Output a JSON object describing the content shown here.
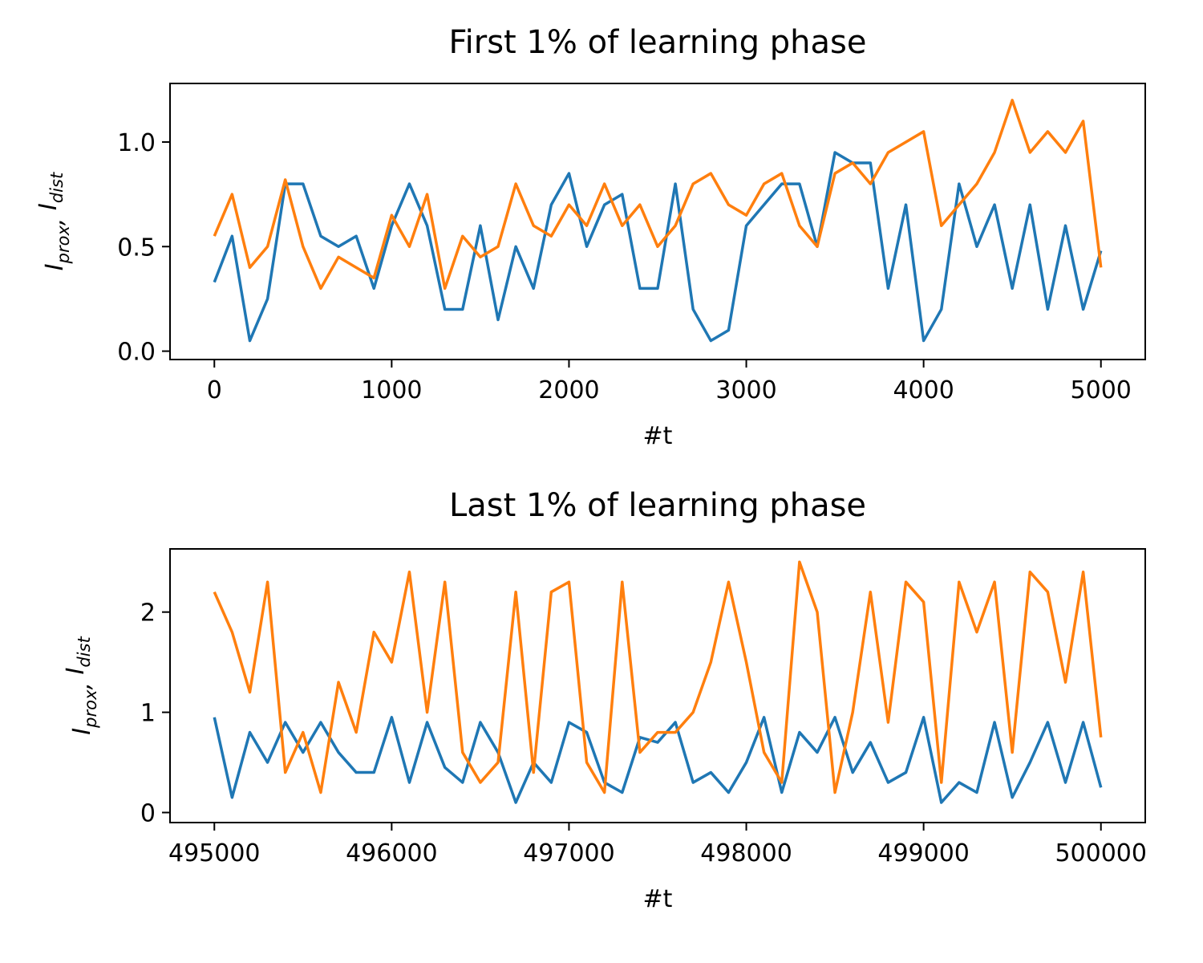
{
  "chart_data": [
    {
      "type": "line",
      "title": "First 1% of learning phase",
      "xlabel": "#t",
      "ylabel": [
        "I",
        "prox",
        ", ",
        "I",
        "dist"
      ],
      "x": [
        0,
        100,
        200,
        300,
        400,
        500,
        600,
        700,
        800,
        900,
        1000,
        1100,
        1200,
        1300,
        1400,
        1500,
        1600,
        1700,
        1800,
        1900,
        2000,
        2100,
        2200,
        2300,
        2400,
        2500,
        2600,
        2700,
        2800,
        2900,
        3000,
        3100,
        3200,
        3300,
        3400,
        3500,
        3600,
        3700,
        3800,
        3900,
        4000,
        4100,
        4200,
        4300,
        4400,
        4500,
        4600,
        4700,
        4800,
        4900,
        5000
      ],
      "series": [
        {
          "color": "#1f77b4",
          "values": [
            0.33,
            0.55,
            0.05,
            0.25,
            0.8,
            0.8,
            0.55,
            0.5,
            0.55,
            0.3,
            0.6,
            0.8,
            0.6,
            0.2,
            0.2,
            0.6,
            0.15,
            0.5,
            0.3,
            0.7,
            0.85,
            0.5,
            0.7,
            0.75,
            0.3,
            0.3,
            0.8,
            0.2,
            0.05,
            0.1,
            0.6,
            0.7,
            0.8,
            0.8,
            0.5,
            0.95,
            0.9,
            0.9,
            0.3,
            0.7,
            0.05,
            0.2,
            0.8,
            0.5,
            0.7,
            0.3,
            0.7,
            0.2,
            0.6,
            0.2,
            0.48
          ]
        },
        {
          "color": "#ff7f0e",
          "values": [
            0.55,
            0.75,
            0.4,
            0.5,
            0.82,
            0.5,
            0.3,
            0.45,
            0.4,
            0.35,
            0.65,
            0.5,
            0.75,
            0.3,
            0.55,
            0.45,
            0.5,
            0.8,
            0.6,
            0.55,
            0.7,
            0.6,
            0.8,
            0.6,
            0.7,
            0.5,
            0.6,
            0.8,
            0.85,
            0.7,
            0.65,
            0.8,
            0.85,
            0.6,
            0.5,
            0.85,
            0.9,
            0.8,
            0.95,
            1.0,
            1.05,
            0.6,
            0.7,
            0.8,
            0.95,
            1.2,
            0.95,
            1.05,
            0.95,
            1.1,
            0.4
          ]
        }
      ],
      "xlim": [
        -250,
        5250
      ],
      "xticks": [
        0,
        1000,
        2000,
        3000,
        4000,
        5000
      ],
      "ylim": [
        -0.04,
        1.28
      ],
      "yticks": [
        {
          "value": 0,
          "label": "0.0"
        },
        0.5,
        {
          "value": 1,
          "label": "1.0"
        }
      ]
    },
    {
      "type": "line",
      "title": "Last 1% of learning phase",
      "xlabel": "#t",
      "ylabel": [
        "I",
        "prox",
        ", ",
        "I",
        "dist"
      ],
      "x": [
        495000,
        495100,
        495200,
        495300,
        495400,
        495500,
        495600,
        495700,
        495800,
        495900,
        496000,
        496100,
        496200,
        496300,
        496400,
        496500,
        496600,
        496700,
        496800,
        496900,
        497000,
        497100,
        497200,
        497300,
        497400,
        497500,
        497600,
        497700,
        497800,
        497900,
        498000,
        498100,
        498200,
        498300,
        498400,
        498500,
        498600,
        498700,
        498800,
        498900,
        499000,
        499100,
        499200,
        499300,
        499400,
        499500,
        499600,
        499700,
        499800,
        499900,
        500000
      ],
      "series": [
        {
          "color": "#1f77b4",
          "values": [
            0.95,
            0.15,
            0.8,
            0.5,
            0.9,
            0.6,
            0.9,
            0.6,
            0.4,
            0.4,
            0.95,
            0.3,
            0.9,
            0.45,
            0.3,
            0.9,
            0.6,
            0.1,
            0.5,
            0.3,
            0.9,
            0.8,
            0.3,
            0.2,
            0.75,
            0.7,
            0.9,
            0.3,
            0.4,
            0.2,
            0.5,
            0.95,
            0.2,
            0.8,
            0.6,
            0.95,
            0.4,
            0.7,
            0.3,
            0.4,
            0.95,
            0.1,
            0.3,
            0.2,
            0.9,
            0.15,
            0.5,
            0.9,
            0.3,
            0.9,
            0.25
          ]
        },
        {
          "color": "#ff7f0e",
          "values": [
            2.2,
            1.8,
            1.2,
            2.3,
            0.4,
            0.8,
            0.2,
            1.3,
            0.8,
            1.8,
            1.5,
            2.4,
            1.0,
            2.3,
            0.6,
            0.3,
            0.5,
            2.2,
            0.4,
            2.2,
            2.3,
            0.5,
            0.2,
            2.3,
            0.6,
            0.8,
            0.8,
            1.0,
            1.5,
            2.3,
            1.5,
            0.6,
            0.3,
            2.5,
            2.0,
            0.2,
            1.0,
            2.2,
            0.9,
            2.3,
            2.1,
            0.3,
            2.3,
            1.8,
            2.3,
            0.6,
            2.4,
            2.2,
            1.3,
            2.4,
            0.75
          ]
        }
      ],
      "xlim": [
        494750,
        500250
      ],
      "xticks": [
        495000,
        496000,
        497000,
        498000,
        499000,
        500000
      ],
      "ylim": [
        -0.1,
        2.63
      ],
      "yticks": [
        0,
        1,
        2
      ]
    }
  ]
}
